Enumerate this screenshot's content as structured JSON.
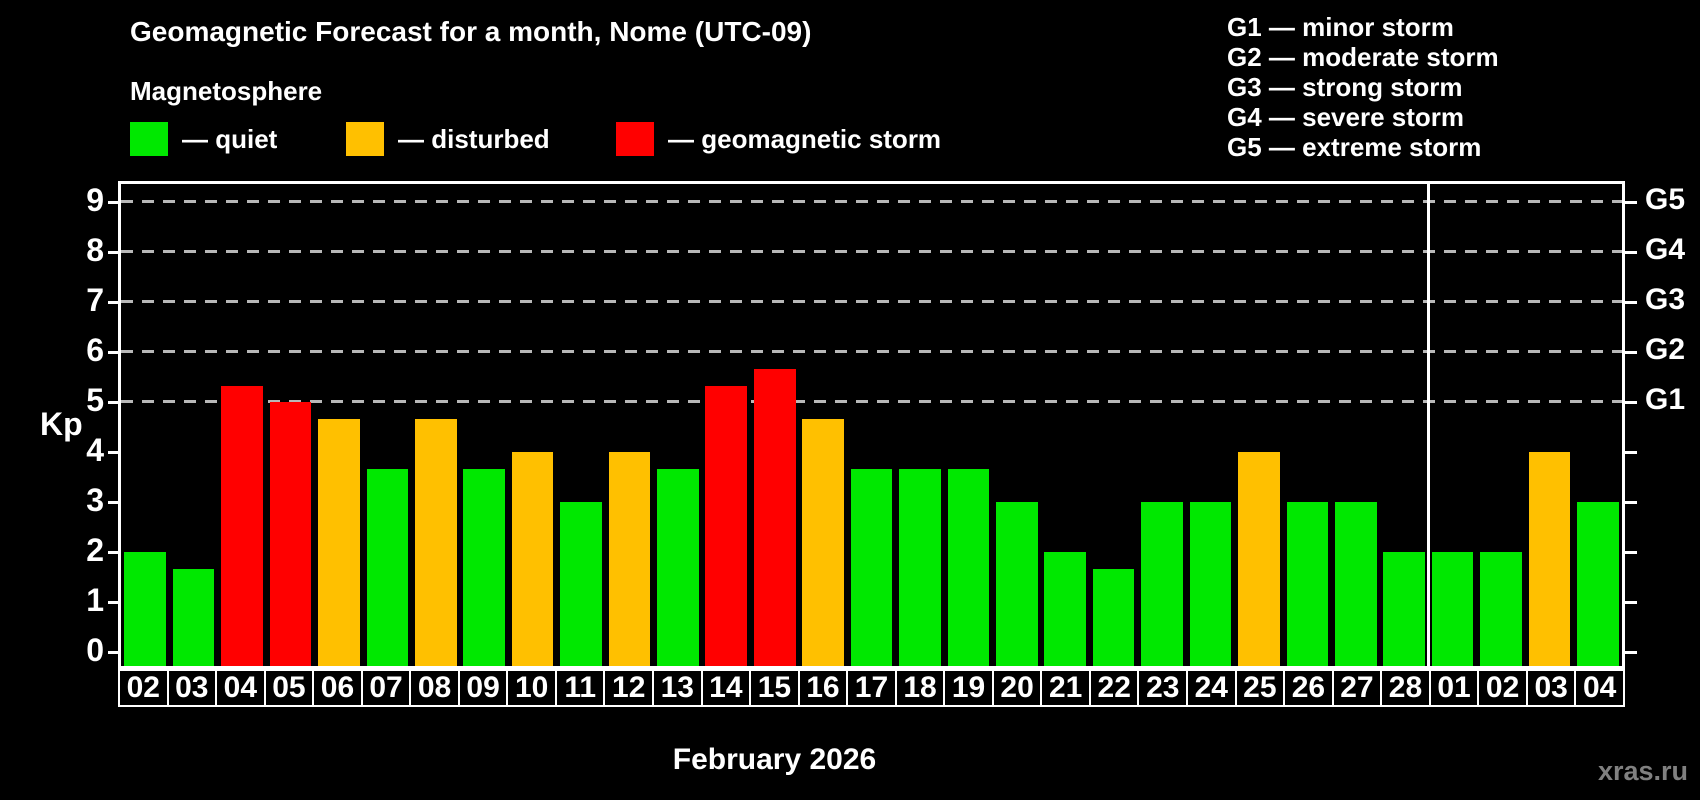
{
  "title": "Geomagnetic Forecast for a month, Nome (UTC-09)",
  "subtitle": "Magnetosphere",
  "legend": [
    {
      "name": "quiet",
      "label": "— quiet",
      "color": "#00E800"
    },
    {
      "name": "disturbed",
      "label": "— disturbed",
      "color": "#FFC000"
    },
    {
      "name": "storm",
      "label": "— geomagnetic storm",
      "color": "#FF0000"
    }
  ],
  "storm_legend": [
    "G1 — minor storm",
    "G2 — moderate storm",
    "G3 — strong storm",
    "G4 — severe storm",
    "G5 — extreme storm"
  ],
  "watermark": "xras.ru",
  "chart_data": {
    "type": "bar",
    "title": "Geomagnetic Forecast for a month, Nome (UTC-09)",
    "xlabel": "February 2026",
    "ylabel": "Kp",
    "ylim": [
      0,
      9
    ],
    "yticks": [
      0,
      1,
      2,
      3,
      4,
      5,
      6,
      7,
      8,
      9
    ],
    "gridlines": [
      5,
      6,
      7,
      8,
      9
    ],
    "grid": "horizontal dashed at G-storm levels only",
    "legend_position": "top",
    "right_axis": [
      {
        "label": "G1",
        "kp": 5
      },
      {
        "label": "G2",
        "kp": 6
      },
      {
        "label": "G3",
        "kp": 7
      },
      {
        "label": "G4",
        "kp": 8
      },
      {
        "label": "G5",
        "kp": 9
      }
    ],
    "categories": [
      "02",
      "03",
      "04",
      "05",
      "06",
      "07",
      "08",
      "09",
      "10",
      "11",
      "12",
      "13",
      "14",
      "15",
      "16",
      "17",
      "18",
      "19",
      "20",
      "21",
      "22",
      "23",
      "24",
      "25",
      "26",
      "27",
      "28",
      "01",
      "02",
      "03",
      "04"
    ],
    "values": [
      2,
      1.67,
      5.33,
      5,
      4.67,
      3.67,
      4.67,
      3.67,
      4,
      3,
      4,
      3.67,
      5.33,
      5.67,
      4.67,
      3.67,
      3.67,
      3.67,
      3,
      2,
      1.67,
      3,
      3,
      4,
      3,
      3,
      2,
      2,
      2,
      4,
      3
    ],
    "statuses": [
      "quiet",
      "quiet",
      "storm",
      "storm",
      "disturbed",
      "quiet",
      "disturbed",
      "quiet",
      "disturbed",
      "quiet",
      "disturbed",
      "quiet",
      "storm",
      "storm",
      "disturbed",
      "quiet",
      "quiet",
      "quiet",
      "quiet",
      "quiet",
      "quiet",
      "quiet",
      "quiet",
      "disturbed",
      "quiet",
      "quiet",
      "quiet",
      "quiet",
      "quiet",
      "disturbed",
      "quiet"
    ],
    "status_colors": {
      "quiet": "#00E800",
      "disturbed": "#FFC000",
      "storm": "#FF0000"
    },
    "month_split_index": 27
  }
}
